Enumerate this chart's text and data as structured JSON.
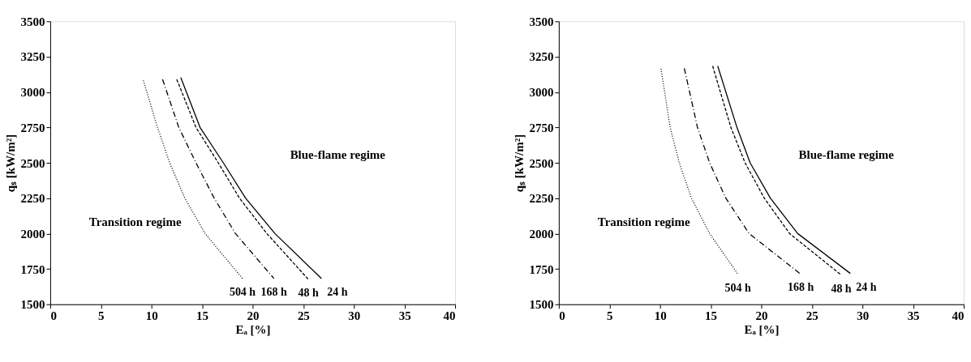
{
  "chart_data": [
    {
      "type": "line",
      "xlabel": "Eₐ [%]",
      "ylabel": "qₛ [kW/m²]",
      "xlim": [
        0,
        40
      ],
      "xticks": [
        0,
        5,
        10,
        15,
        20,
        25,
        30,
        35,
        40
      ],
      "ylim": [
        1500,
        3500
      ],
      "yticks": [
        1500,
        1750,
        2000,
        2250,
        2500,
        2750,
        3000,
        3250,
        3500
      ],
      "series": [
        {
          "name": "504 h",
          "color": "#000000",
          "line_style": "dotted",
          "x": [
            9.2,
            10.6,
            11.8,
            13.3,
            15.3,
            19.0
          ],
          "values": [
            3082,
            2750,
            2500,
            2250,
            2000,
            1682
          ]
        },
        {
          "name": "168 h",
          "color": "#000000",
          "line_style": "dashdot",
          "x": [
            11.1,
            12.7,
            14.4,
            16.2,
            18.3,
            22.1
          ],
          "values": [
            3090,
            2750,
            2500,
            2250,
            2000,
            1682
          ]
        },
        {
          "name": "48 h",
          "color": "#000000",
          "line_style": "dashed",
          "x": [
            12.5,
            14.4,
            16.6,
            18.7,
            21.4,
            25.5
          ],
          "values": [
            3090,
            2750,
            2500,
            2250,
            2000,
            1676
          ]
        },
        {
          "name": "24 h",
          "color": "#000000",
          "line_style": "solid",
          "x": [
            12.9,
            14.8,
            17.1,
            19.3,
            22.2,
            26.8
          ],
          "values": [
            3102,
            2750,
            2500,
            2250,
            2000,
            1682
          ]
        }
      ],
      "annotations": [
        "Blue-flame regime",
        "Transition regime"
      ]
    },
    {
      "type": "line",
      "xlabel": "Eₐ [%]",
      "ylabel": "qₛ [kW/m²]",
      "xlim": [
        0,
        40
      ],
      "xticks": [
        0,
        5,
        10,
        15,
        20,
        25,
        30,
        35,
        40
      ],
      "ylim": [
        1500,
        3500
      ],
      "yticks": [
        1500,
        1750,
        2000,
        2250,
        2500,
        2750,
        3000,
        3250,
        3500
      ],
      "series": [
        {
          "name": "504 h",
          "color": "#000000",
          "line_style": "dotted",
          "x": [
            10.1,
            11.0,
            11.9,
            13.1,
            14.9,
            17.7
          ],
          "values": [
            3164,
            2750,
            2500,
            2250,
            2000,
            1712
          ]
        },
        {
          "name": "168 h",
          "color": "#000000",
          "line_style": "dashdot",
          "x": [
            12.4,
            13.7,
            14.9,
            16.5,
            18.8,
            23.9
          ],
          "values": [
            3168,
            2750,
            2500,
            2250,
            2000,
            1713
          ]
        },
        {
          "name": "48 h",
          "color": "#000000",
          "line_style": "dashed",
          "x": [
            15.2,
            17.0,
            18.4,
            20.3,
            22.8,
            27.9
          ],
          "values": [
            3184,
            2750,
            2500,
            2250,
            2000,
            1707
          ]
        },
        {
          "name": "24 h",
          "color": "#000000",
          "line_style": "solid",
          "x": [
            15.7,
            17.6,
            18.9,
            20.9,
            23.6,
            28.8
          ],
          "values": [
            3184,
            2750,
            2500,
            2250,
            2000,
            1718
          ]
        }
      ],
      "annotations": [
        "Blue-flame regime",
        "Transition regime"
      ]
    }
  ]
}
